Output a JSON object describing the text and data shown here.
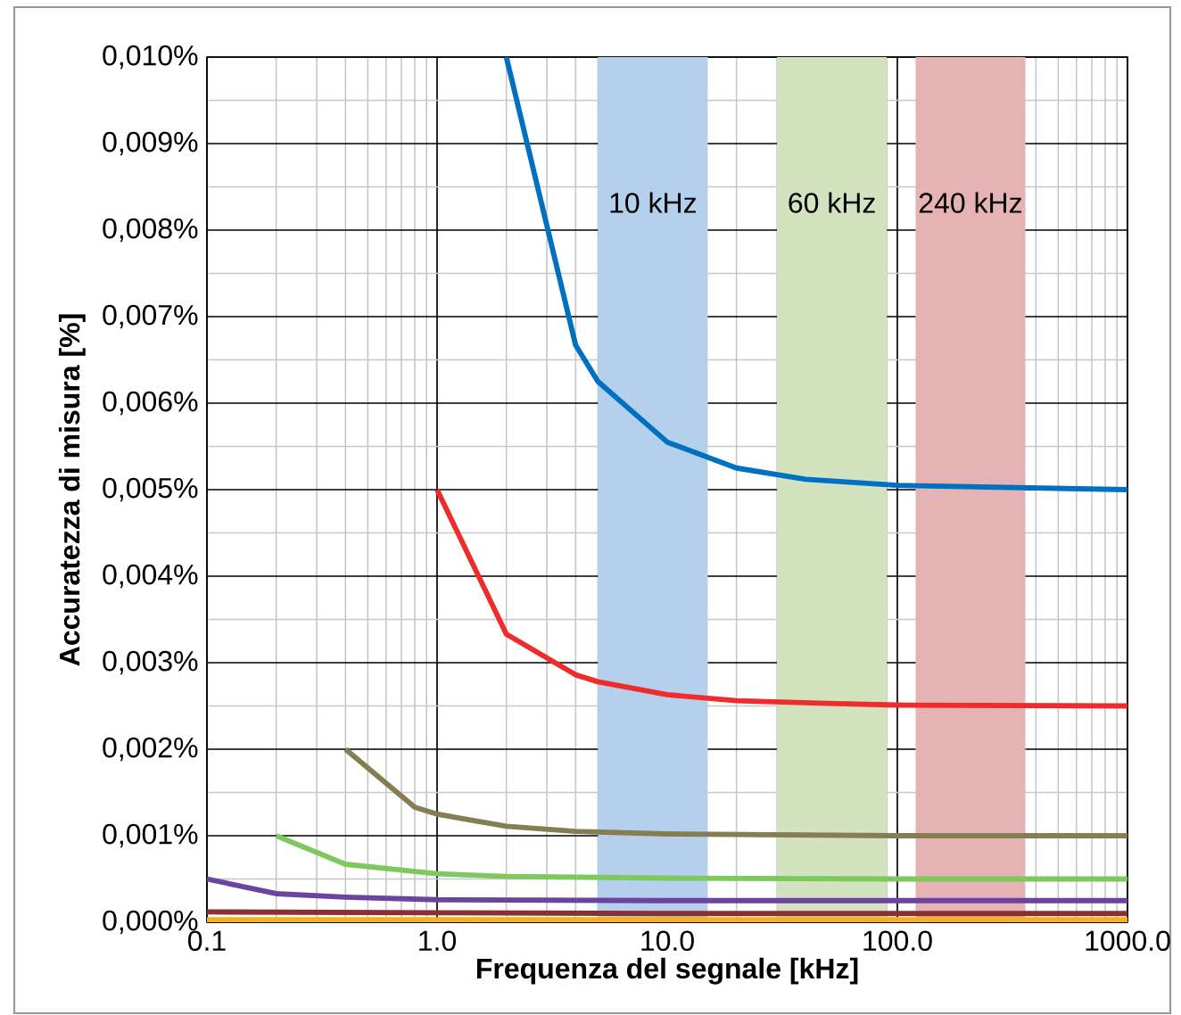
{
  "chart_data": {
    "type": "line",
    "xlabel": "Frequenza del segnale [kHz]",
    "ylabel": "Accuratezza di misura [%]",
    "log": "x",
    "grid": true,
    "marker": "none",
    "line_style": "solid",
    "xlim": [
      0.1,
      1000
    ],
    "ylim": [
      0,
      0.01
    ],
    "xticks": [
      {
        "value": 0.1,
        "label": "0.1"
      },
      {
        "value": 1,
        "label": "1.0"
      },
      {
        "value": 10,
        "label": "10.0"
      },
      {
        "value": 100,
        "label": "100.0"
      },
      {
        "value": 1000,
        "label": "1000.0"
      }
    ],
    "yticks": [
      {
        "value": 0,
        "label": "0,000%"
      },
      {
        "value": 0.001,
        "label": "0,001%"
      },
      {
        "value": 0.002,
        "label": "0,002%"
      },
      {
        "value": 0.003,
        "label": "0,003%"
      },
      {
        "value": 0.004,
        "label": "0,004%"
      },
      {
        "value": 0.005,
        "label": "0,005%"
      },
      {
        "value": 0.006,
        "label": "0,006%"
      },
      {
        "value": 0.007,
        "label": "0,007%"
      },
      {
        "value": 0.008,
        "label": "0,008%"
      },
      {
        "value": 0.009,
        "label": "0,009%"
      },
      {
        "value": 0.01,
        "label": "0,010%"
      }
    ],
    "bands": [
      {
        "axis": "x",
        "from": 5,
        "to": 15,
        "label": "10 kHz",
        "color": "#b4d0ec"
      },
      {
        "axis": "x",
        "from": 30,
        "to": 90,
        "label": "60 kHz",
        "color": "#d3e3bf"
      },
      {
        "axis": "x",
        "from": 120,
        "to": 360,
        "label": "240 kHz",
        "color": "#e5b3b3"
      }
    ],
    "series": [
      {
        "color": "#0070c0",
        "x": [
          2,
          4,
          5,
          10,
          20,
          40,
          100,
          1000
        ],
        "values": [
          0.01,
          0.00667,
          0.00625,
          0.00555,
          0.00525,
          0.00512,
          0.00505,
          0.005
        ]
      },
      {
        "color": "#ee2c2c",
        "x": [
          1,
          2,
          4,
          5,
          10,
          20,
          50,
          100,
          1000
        ],
        "values": [
          0.005,
          0.00333,
          0.00286,
          0.00278,
          0.00263,
          0.00256,
          0.00253,
          0.00251,
          0.0025
        ]
      },
      {
        "color": "#857e55",
        "x": [
          0.4,
          0.8,
          1,
          2,
          4,
          10,
          100,
          1000
        ],
        "values": [
          0.002,
          0.00133,
          0.00125,
          0.00111,
          0.00105,
          0.00102,
          0.001,
          0.001
        ]
      },
      {
        "color": "#7ec85f",
        "x": [
          0.2,
          0.4,
          1,
          2,
          10,
          100,
          1000
        ],
        "values": [
          0.001,
          0.00067,
          0.00056,
          0.00053,
          0.00051,
          0.0005,
          0.0005
        ]
      },
      {
        "color": "#6b44a0",
        "x": [
          0.1,
          0.2,
          0.4,
          1,
          10,
          100,
          1000
        ],
        "values": [
          0.0005,
          0.00033,
          0.00029,
          0.00026,
          0.00025,
          0.00025,
          0.00025
        ]
      },
      {
        "color": "#8b3030",
        "x": [
          0.1,
          1,
          10,
          1000
        ],
        "values": [
          0.00012,
          0.00011,
          0.0001,
          0.0001
        ]
      },
      {
        "color": "#f5b020",
        "x": [
          0.1,
          1000
        ],
        "values": [
          3e-05,
          3e-05
        ]
      }
    ]
  }
}
